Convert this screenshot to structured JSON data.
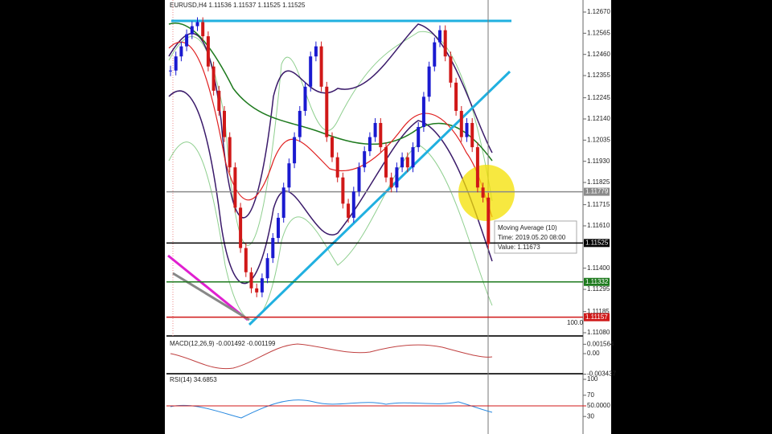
{
  "chart_data": {
    "type": "candlestick",
    "header": "EURUSD,H4 1.11536 1.11537 1.11525 1.11525",
    "closes": [
      1.1238,
      1.1245,
      1.125,
      1.1256,
      1.126,
      1.1262,
      1.1255,
      1.124,
      1.1228,
      1.1218,
      1.1205,
      1.119,
      1.117,
      1.115,
      1.1138,
      1.113,
      1.1128,
      1.1135,
      1.1145,
      1.1155,
      1.1165,
      1.118,
      1.1192,
      1.1205,
      1.1218,
      1.123,
      1.1245,
      1.125,
      1.123,
      1.1205,
      1.1195,
      1.1185,
      1.1172,
      1.1165,
      1.1178,
      1.119,
      1.1198,
      1.1205,
      1.1212,
      1.12,
      1.1185,
      1.118,
      1.119,
      1.1195,
      1.119,
      1.12,
      1.121,
      1.1225,
      1.124,
      1.1252,
      1.1258,
      1.1245,
      1.1232,
      1.1218,
      1.1205,
      1.1212,
      1.12,
      1.118,
      1.1175,
      1.1152
    ],
    "up_color": "#1a1ad0",
    "down_color": "#d01818",
    "ylim": [
      1.1108,
      1.1267
    ],
    "yticks": [
      {
        "value": 1.1267,
        "label": "1.12670"
      },
      {
        "value": 1.12565,
        "label": "1.12565"
      },
      {
        "value": 1.1246,
        "label": "1.12460"
      },
      {
        "value": 1.12355,
        "label": "1.12355"
      },
      {
        "value": 1.12245,
        "label": "1.12245"
      },
      {
        "value": 1.1214,
        "label": "1.12140"
      },
      {
        "value": 1.12035,
        "label": "1.12035"
      },
      {
        "value": 1.1193,
        "label": "1.11930"
      },
      {
        "value": 1.11825,
        "label": "1.11825"
      },
      {
        "value": 1.11715,
        "label": "1.11715"
      },
      {
        "value": 1.1161,
        "label": "1.11610"
      },
      {
        "value": 1.114,
        "label": "1.11400"
      },
      {
        "value": 1.11295,
        "label": "1.11295"
      },
      {
        "value": 1.11185,
        "label": "1.11185"
      },
      {
        "value": 1.1108,
        "label": "1.11080"
      }
    ],
    "levels": [
      {
        "price": 1.11779,
        "color": "#8a8a8a"
      },
      {
        "price": 1.11525,
        "color": "#000000"
      },
      {
        "price": 1.11332,
        "color": "#1e7a1e"
      },
      {
        "price": 1.11157,
        "color": "#d01818"
      }
    ],
    "level_note": "100.0",
    "tooltip": {
      "title": "Moving Average (10)",
      "time": "Time: 2019.05.20 08:00",
      "value": "Value: 1.11673"
    },
    "macd": {
      "label": "MACD(12,26,9) -0.001492 -0.001199",
      "ticks": [
        {
          "value": 0.001564,
          "label": "0.001564"
        },
        {
          "value": 0,
          "label": "0.00"
        },
        {
          "value": -0.003437,
          "label": "-0.003437"
        }
      ]
    },
    "rsi": {
      "label": "RSI(14) 34.6853",
      "ticks": [
        100,
        70,
        {
          "value": 50,
          "label": "50.0000"
        },
        30
      ]
    }
  }
}
